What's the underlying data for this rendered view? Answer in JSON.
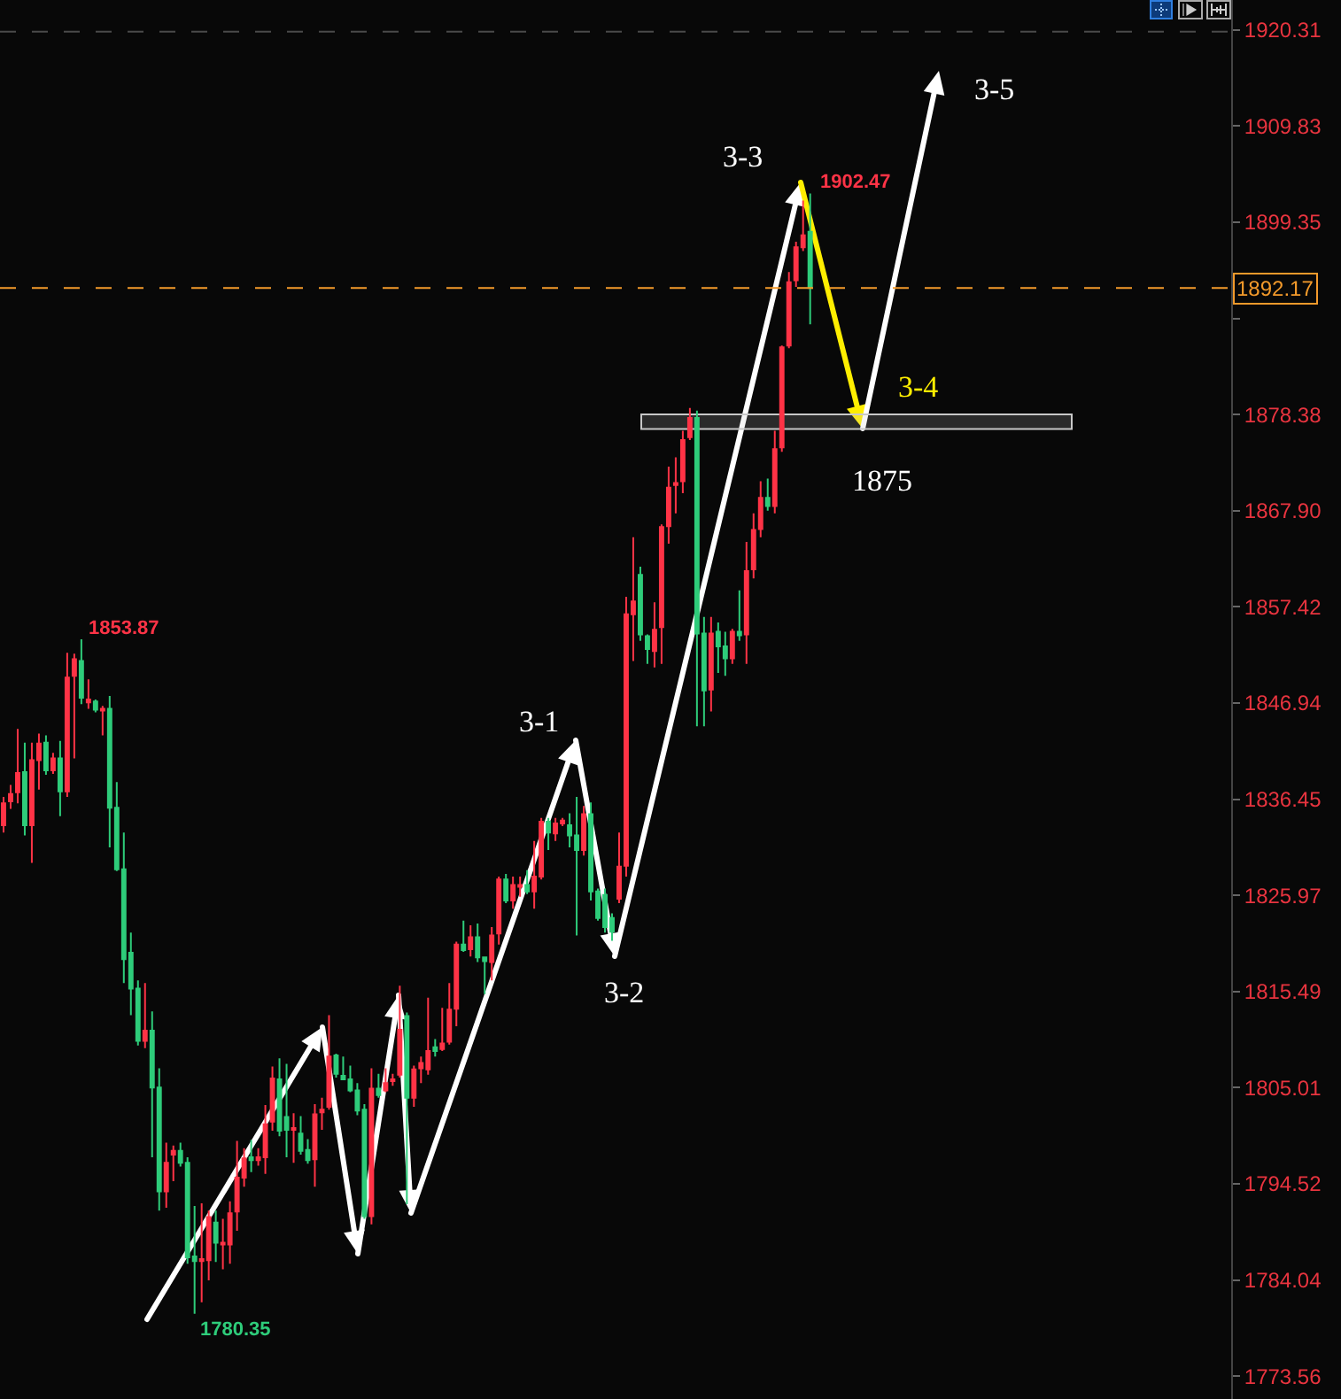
{
  "chart_data": {
    "type": "candlestick",
    "categories": [
      null,
      null,
      null,
      null,
      null,
      null,
      null,
      null,
      null,
      null,
      null,
      null,
      null,
      null,
      null,
      null,
      null,
      null,
      null,
      null,
      null,
      null,
      null,
      null,
      null,
      null,
      null,
      null,
      null,
      null,
      null,
      null,
      null,
      null,
      null,
      null,
      null,
      null,
      null,
      null,
      null,
      null,
      null,
      null,
      null,
      null,
      null,
      null,
      null,
      null,
      null,
      null,
      null,
      null,
      null,
      null,
      null,
      null,
      null,
      null,
      null,
      null,
      null,
      null,
      null,
      null,
      null,
      null,
      null,
      null,
      null,
      null,
      null,
      null,
      null,
      null,
      null,
      null,
      null,
      null,
      null,
      null,
      null,
      null,
      null,
      null,
      null,
      null,
      null,
      null,
      null,
      null,
      null,
      null,
      null,
      null,
      null,
      null,
      null,
      null,
      null,
      null,
      null,
      null,
      null,
      null,
      null,
      null,
      null,
      null,
      null,
      null,
      null,
      null,
      null,
      null,
      null,
      null,
      null,
      null,
      null,
      null,
      null,
      null,
      null,
      null,
      null,
      null,
      null,
      null,
      null,
      null,
      null,
      null,
      null,
      null,
      null,
      null,
      null,
      null,
      null,
      null,
      null,
      null,
      null,
      null,
      null,
      null,
      null,
      null,
      null,
      null,
      null,
      null,
      null,
      null,
      null,
      null,
      null,
      null,
      null,
      null,
      null,
      null,
      null,
      null,
      null,
      null,
      null,
      null,
      null,
      null,
      null,
      null
    ],
    "ohlc": [
      [
        1833.6,
        1836.7,
        1832.8,
        1836.0
      ],
      [
        1836.2,
        1838.0,
        1835.4,
        1837.0
      ],
      [
        1837.2,
        1844.1,
        1836.0,
        1839.3
      ],
      [
        1839.4,
        1842.6,
        1832.5,
        1833.6
      ],
      [
        1833.6,
        1842.6,
        1829.5,
        1840.7
      ],
      [
        1840.7,
        1843.6,
        1837.5,
        1842.5
      ],
      [
        1842.6,
        1843.4,
        1839.1,
        1839.6
      ],
      [
        1839.6,
        1841.5,
        1839.2,
        1840.9
      ],
      [
        1840.9,
        1842.8,
        1834.6,
        1837.3
      ],
      [
        1837.3,
        1852.4,
        1836.7,
        1849.7
      ],
      [
        1849.9,
        1852.3,
        1840.9,
        1851.7
      ],
      [
        1851.5,
        1853.87,
        1846.8,
        1847.5
      ],
      [
        1847.0,
        1849.5,
        1846.3,
        1847.3
      ],
      [
        1847.1,
        1847.3,
        1845.9,
        1846.2
      ],
      [
        1846.1,
        1846.6,
        1843.4,
        1846.3
      ],
      [
        1846.3,
        1847.7,
        1831.2,
        1835.5
      ],
      [
        1835.5,
        1838.3,
        1828.6,
        1828.8
      ],
      [
        1828.8,
        1832.8,
        1816.4,
        1819.0
      ],
      [
        1819.7,
        1821.9,
        1812.9,
        1815.8
      ],
      [
        1815.8,
        1816.7,
        1809.6,
        1810.1
      ],
      [
        1810.1,
        1816.4,
        1809.3,
        1811.2
      ],
      [
        1811.2,
        1813.3,
        1797.4,
        1805.0
      ],
      [
        1805.0,
        1807.1,
        1791.6,
        1793.7
      ],
      [
        1793.7,
        1799.0,
        1791.9,
        1796.8
      ],
      [
        1797.7,
        1798.7,
        1794.8,
        1798.1
      ],
      [
        1798.1,
        1799.0,
        1796.4,
        1796.8
      ],
      [
        1796.8,
        1797.4,
        1785.8,
        1786.5
      ],
      [
        1786.6,
        1792.1,
        1780.35,
        1786.1
      ],
      [
        1786.1,
        1792.4,
        1781.6,
        1786.3
      ],
      [
        1786.2,
        1791.6,
        1784.0,
        1790.9
      ],
      [
        1790.3,
        1791.6,
        1786.0,
        1788.1
      ],
      [
        1787.9,
        1790.7,
        1785.2,
        1788.1
      ],
      [
        1787.9,
        1792.6,
        1785.8,
        1791.3
      ],
      [
        1791.5,
        1799.2,
        1789.4,
        1795.2
      ],
      [
        1795.2,
        1798.4,
        1794.2,
        1797.3
      ],
      [
        1797.4,
        1799.3,
        1795.8,
        1797.1
      ],
      [
        1797.1,
        1798.4,
        1796.5,
        1797.4
      ],
      [
        1797.4,
        1803.1,
        1795.6,
        1801.0
      ],
      [
        1801.3,
        1807.3,
        1800.3,
        1806.0
      ],
      [
        1805.9,
        1808.2,
        1799.7,
        1800.3
      ],
      [
        1801.8,
        1807.6,
        1797.4,
        1800.4
      ],
      [
        1800.4,
        1802.2,
        1796.8,
        1800.6
      ],
      [
        1800.0,
        1801.9,
        1797.7,
        1798.1
      ],
      [
        1798.2,
        1799.4,
        1796.7,
        1797.1
      ],
      [
        1797.2,
        1803.2,
        1794.2,
        1802.1
      ],
      [
        1802.3,
        1803.9,
        1800.4,
        1802.6
      ],
      [
        1802.9,
        1812.9,
        1802.6,
        1808.4
      ],
      [
        1808.5,
        1808.7,
        1806.1,
        1806.5
      ],
      [
        1806.3,
        1808.4,
        1805.8,
        1805.9
      ],
      [
        1805.9,
        1807.4,
        1804.5,
        1804.7
      ],
      [
        1804.7,
        1805.5,
        1802.0,
        1802.5
      ],
      [
        1802.6,
        1803.2,
        1790.7,
        1791.0
      ],
      [
        1791.0,
        1807.1,
        1790.1,
        1804.9
      ],
      [
        1804.9,
        1806.5,
        1803.9,
        1804.2
      ],
      [
        1804.7,
        1807.1,
        1804.5,
        1805.5
      ],
      [
        1805.7,
        1806.5,
        1805.2,
        1805.9
      ],
      [
        1806.4,
        1816.1,
        1806.1,
        1811.3
      ],
      [
        1812.8,
        1813.2,
        1792.3,
        1803.9
      ],
      [
        1803.9,
        1807.4,
        1802.9,
        1807.0
      ],
      [
        1807.1,
        1808.4,
        1805.5,
        1807.7
      ],
      [
        1807.0,
        1814.8,
        1806.4,
        1809.0
      ],
      [
        1809.4,
        1810.3,
        1808.4,
        1809.0
      ],
      [
        1809.2,
        1813.7,
        1809.0,
        1809.8
      ],
      [
        1810.0,
        1816.4,
        1809.7,
        1813.5
      ],
      [
        1813.6,
        1820.9,
        1811.7,
        1820.6
      ],
      [
        1820.6,
        1823.2,
        1819.8,
        1820.0
      ],
      [
        1820.1,
        1822.7,
        1819.3,
        1821.4
      ],
      [
        1821.4,
        1822.9,
        1818.7,
        1819.2
      ],
      [
        1819.2,
        1819.3,
        1815.2,
        1818.8
      ],
      [
        1818.7,
        1822.5,
        1816.7,
        1821.6
      ],
      [
        1821.8,
        1828.0,
        1820.6,
        1827.7
      ],
      [
        1827.7,
        1828.3,
        1825.1,
        1825.4
      ],
      [
        1825.4,
        1828.0,
        1824.5,
        1827.1
      ],
      [
        1826.9,
        1828.0,
        1825.8,
        1827.1
      ],
      [
        1827.1,
        1828.7,
        1826.1,
        1826.4
      ],
      [
        1826.4,
        1831.9,
        1824.5,
        1828.0
      ],
      [
        1828.0,
        1834.4,
        1827.7,
        1834.0
      ],
      [
        1834.0,
        1834.4,
        1830.9,
        1832.8
      ],
      [
        1832.7,
        1834.4,
        1831.9,
        1833.8
      ],
      [
        1833.8,
        1834.4,
        1833.5,
        1834.1
      ],
      [
        1833.6,
        1834.9,
        1831.2,
        1832.5
      ],
      [
        1832.5,
        1836.7,
        1821.6,
        1830.9
      ],
      [
        1830.9,
        1835.7,
        1830.3,
        1834.8
      ],
      [
        1834.8,
        1836.1,
        1825.4,
        1826.4
      ],
      [
        1826.4,
        1826.7,
        1823.2,
        1823.5
      ],
      [
        1826.0,
        1826.7,
        1821.9,
        1822.5
      ],
      [
        1823.5,
        1824.0,
        1821.0,
        1822.0
      ],
      [
        1825.6,
        1832.8,
        1825.1,
        1829.1
      ],
      [
        1829.2,
        1858.5,
        1828.0,
        1856.6
      ],
      [
        1856.6,
        1865.0,
        1851.5,
        1858.0
      ],
      [
        1860.9,
        1861.8,
        1853.7,
        1854.4
      ],
      [
        1854.2,
        1854.4,
        1851.2,
        1852.8
      ],
      [
        1852.6,
        1857.9,
        1850.8,
        1854.9
      ],
      [
        1855.2,
        1866.4,
        1851.2,
        1866.1
      ],
      [
        1866.2,
        1872.7,
        1864.3,
        1870.4
      ],
      [
        1870.7,
        1873.7,
        1867.6,
        1870.9
      ],
      [
        1871.1,
        1876.6,
        1869.8,
        1875.6
      ],
      [
        1875.9,
        1879.1,
        1875.6,
        1878.0
      ],
      [
        1878.0,
        1878.8,
        1844.4,
        1854.5
      ],
      [
        1854.5,
        1856.3,
        1844.4,
        1848.3
      ],
      [
        1848.4,
        1856.3,
        1846.0,
        1854.5
      ],
      [
        1854.7,
        1855.7,
        1850.2,
        1853.1
      ],
      [
        1853.1,
        1854.7,
        1849.9,
        1851.8
      ],
      [
        1851.8,
        1855.0,
        1851.2,
        1854.7
      ],
      [
        1854.7,
        1859.2,
        1853.7,
        1854.3
      ],
      [
        1854.4,
        1864.5,
        1851.2,
        1861.3
      ],
      [
        1861.5,
        1867.6,
        1860.5,
        1865.8
      ],
      [
        1865.9,
        1871.1,
        1865.0,
        1869.3
      ],
      [
        1869.3,
        1871.4,
        1867.9,
        1868.4
      ],
      [
        1868.4,
        1876.6,
        1867.6,
        1874.6
      ],
      [
        1874.8,
        1885.9,
        1874.3,
        1885.7
      ],
      [
        1885.9,
        1893.9,
        1885.6,
        1892.8
      ],
      [
        1893.0,
        1897.2,
        1892.3,
        1896.6
      ],
      [
        1896.6,
        1901.7,
        1896.2,
        1897.9
      ],
      [
        1898.3,
        1902.47,
        1888.2,
        1892.17
      ],
      null,
      null,
      null,
      null,
      null,
      null,
      null,
      null,
      null,
      null,
      null,
      null,
      null,
      null,
      null,
      null,
      null,
      null,
      null,
      null,
      null,
      null,
      null,
      null,
      null,
      null,
      null,
      null,
      null,
      null,
      null,
      null,
      null,
      null,
      null,
      null,
      null,
      null,
      null,
      null,
      null,
      null,
      null,
      null,
      null,
      null,
      null,
      null,
      null,
      null,
      null,
      null,
      null,
      null,
      null,
      null,
      null,
      null,
      null
    ],
    "colors": [
      "#ff3346",
      "#ff3346",
      "#ff3346",
      "#2ecc7a",
      "#ff3346",
      "#ff3346",
      "#2ecc7a",
      "#ff3346",
      "#2ecc7a",
      "#ff3346",
      "#ff3346",
      "#2ecc7a",
      "#ff3346",
      "#2ecc7a",
      "#ff3346",
      "#2ecc7a",
      "#2ecc7a",
      "#2ecc7a",
      "#2ecc7a",
      "#2ecc7a",
      "#ff3346",
      "#2ecc7a",
      "#2ecc7a",
      "#ff3346",
      "#ff3346",
      "#2ecc7a",
      "#2ecc7a",
      "#2ecc7a",
      "#ff3346",
      "#ff3346",
      "#2ecc7a",
      "#ff3346",
      "#ff3346",
      "#ff3346",
      "#ff3346",
      "#2ecc7a",
      "#ff3346",
      "#ff3346",
      "#ff3346",
      "#2ecc7a",
      "#2ecc7a",
      "#ff3346",
      "#2ecc7a",
      "#2ecc7a",
      "#ff3346",
      "#ff3346",
      "#ff3346",
      "#2ecc7a",
      "#2ecc7a",
      "#2ecc7a",
      "#2ecc7a",
      "#2ecc7a",
      "#ff3346",
      "#2ecc7a",
      "#ff3346",
      "#ff3346",
      "#ff3346",
      "#2ecc7a",
      "#ff3346",
      "#ff3346",
      "#ff3346",
      "#2ecc7a",
      "#ff3346",
      "#ff3346",
      "#ff3346",
      "#2ecc7a",
      "#ff3346",
      "#2ecc7a",
      "#2ecc7a",
      "#ff3346",
      "#ff3346",
      "#2ecc7a",
      "#ff3346",
      "#ff3346",
      "#2ecc7a",
      "#ff3346",
      "#ff3346",
      "#2ecc7a",
      "#ff3346",
      "#ff3346",
      "#2ecc7a",
      "#2ecc7a",
      "#ff3346",
      "#2ecc7a",
      "#2ecc7a",
      "#2ecc7a",
      "#2ecc7a",
      "#ff3346",
      "#ff3346",
      "#ff3346",
      "#2ecc7a",
      "#2ecc7a",
      "#ff3346",
      "#ff3346",
      "#ff3346",
      "#ff3346",
      "#ff3346",
      "#ff3346",
      "#2ecc7a",
      "#2ecc7a",
      "#ff3346",
      "#2ecc7a",
      "#2ecc7a",
      "#ff3346",
      "#2ecc7a",
      "#ff3346",
      "#ff3346",
      "#ff3346",
      "#2ecc7a",
      "#ff3346",
      "#ff3346",
      "#ff3346",
      "#ff3346",
      "#ff3346",
      "#2ecc7a",
      null,
      null,
      null,
      null,
      null,
      null,
      null,
      null,
      null,
      null,
      null,
      null,
      null,
      null,
      null,
      null,
      null,
      null,
      null,
      null,
      null,
      null,
      null,
      null,
      null,
      null,
      null,
      null,
      null,
      null,
      null,
      null,
      null,
      null,
      null,
      null,
      null,
      null,
      null,
      null,
      null,
      null,
      null,
      null,
      null,
      null,
      null,
      null,
      null,
      null,
      null,
      null,
      null,
      null,
      null,
      null,
      null,
      null,
      null
    ],
    "ylim": [
      1771.06,
      1923.56
    ],
    "yticks": [
      1773.56,
      1784.04,
      1794.52,
      1805.01,
      1815.49,
      1825.97,
      1836.45,
      1846.94,
      1857.42,
      {
        "value": 1867.9,
        "label": "1867.90"
      },
      1878.38,
      {
        "value": 1888.86,
        "label": null
      },
      1899.35,
      1909.83,
      1920.31
    ],
    "tick_labels": "y",
    "ref_lines": [
      {
        "axis": "y",
        "value": 1892.17,
        "label": "1892.17",
        "color": "#f39a2b",
        "line_style": "dashed"
      },
      {
        "axis": "y",
        "value": 1920.1,
        "color": "#4a4a4a",
        "line_style": "dashed"
      }
    ],
    "bands": [
      {
        "axis": "y",
        "from": 1876.8,
        "to": 1878.4,
        "color": "#c8c8c8"
      }
    ],
    "annotations": [
      "1853.87",
      "1780.35",
      "1902.47",
      "3-1",
      "3-2",
      "3-3",
      "3-4",
      "1875",
      "3-5"
    ]
  }
}
